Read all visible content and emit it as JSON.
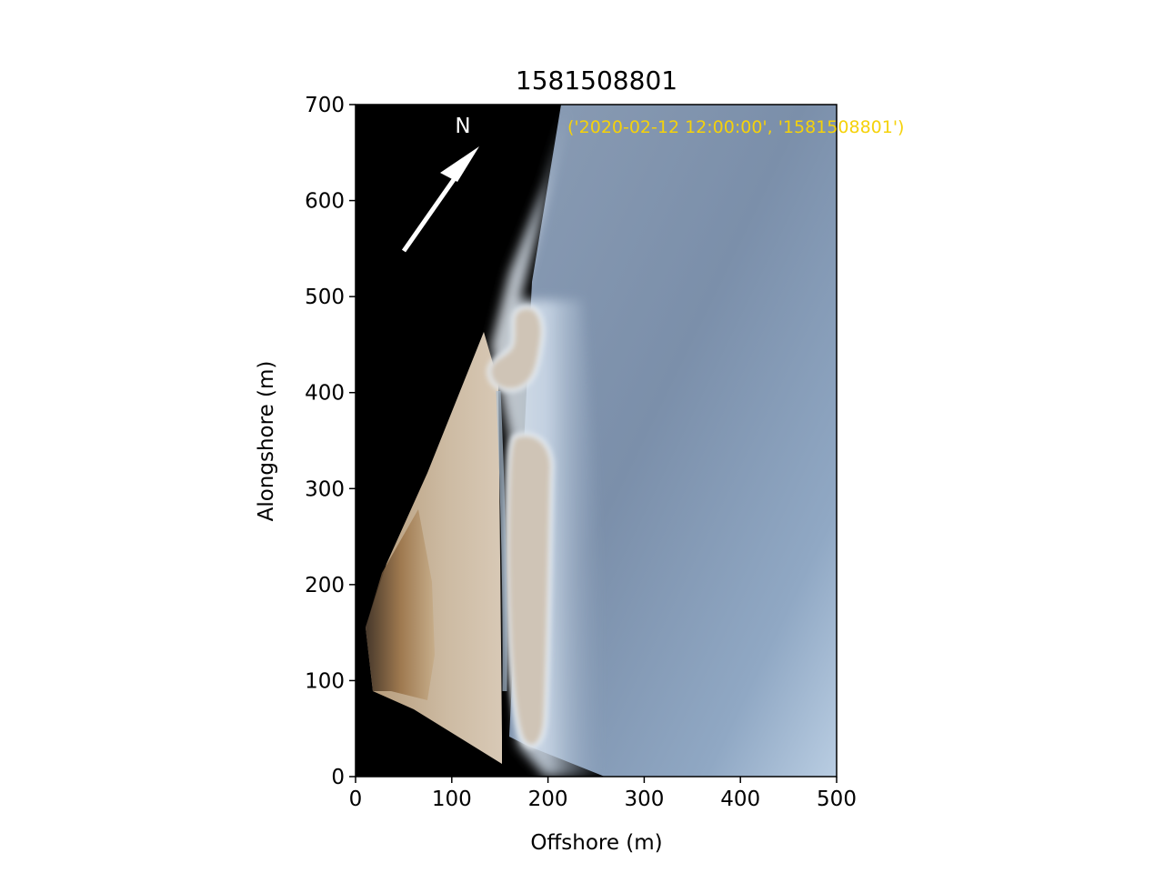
{
  "figure": {
    "title": "1581508801",
    "xlabel": "Offshore (m)",
    "ylabel": "Alongshore (m)",
    "xlim": [
      0,
      500
    ],
    "ylim": [
      0,
      700
    ],
    "xticks": [
      "0",
      "100",
      "200",
      "300",
      "400",
      "500"
    ],
    "yticks": [
      "0",
      "100",
      "200",
      "300",
      "400",
      "500",
      "600",
      "700"
    ],
    "north_label": "N",
    "annotation": "('2020-02-12 12:00:00', '1581508801')",
    "annotation_color": "#f5d20a",
    "image_description_icon": "rectified-beach-image"
  }
}
